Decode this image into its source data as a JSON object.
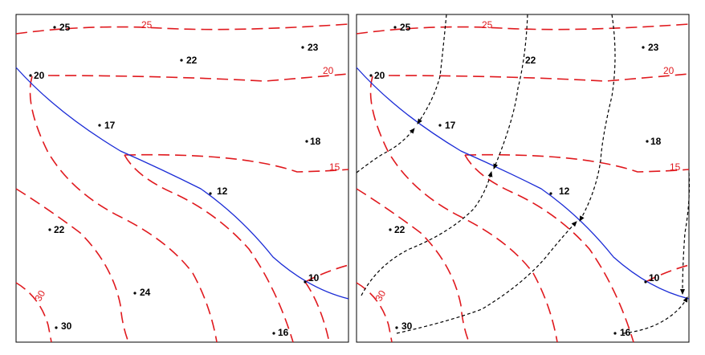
{
  "panels": [
    {
      "id": "left",
      "contour_labels": [
        "25",
        "20",
        "15",
        "10",
        "30"
      ],
      "points": [
        {
          "label": "25"
        },
        {
          "label": "22"
        },
        {
          "label": "23"
        },
        {
          "label": "20"
        },
        {
          "label": "17"
        },
        {
          "label": "18"
        },
        {
          "label": "12"
        },
        {
          "label": "22"
        },
        {
          "label": "24"
        },
        {
          "label": "10"
        },
        {
          "label": "30"
        },
        {
          "label": "16"
        }
      ]
    },
    {
      "id": "right",
      "contour_labels": [
        "25",
        "20",
        "15",
        "30"
      ],
      "points": [
        {
          "label": "25"
        },
        {
          "label": "22"
        },
        {
          "label": "23"
        },
        {
          "label": "20"
        },
        {
          "label": "17"
        },
        {
          "label": "18"
        },
        {
          "label": "12"
        },
        {
          "label": "22"
        },
        {
          "label": "10"
        },
        {
          "label": "30"
        },
        {
          "label": "16"
        }
      ]
    }
  ],
  "colors": {
    "contour": "#e0191e",
    "stream": "#1a2bd6",
    "flowline": "#000000"
  }
}
